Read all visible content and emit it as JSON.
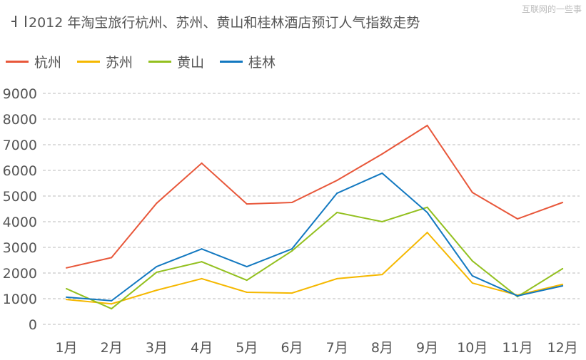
{
  "watermark": "互联网的一些事",
  "chart_data": {
    "type": "line",
    "title": "2012 年淘宝旅行杭州、苏州、黄山和桂林酒店预订人气指数走势",
    "categories": [
      "1月",
      "2月",
      "3月",
      "4月",
      "5月",
      "6月",
      "7月",
      "8月",
      "9月",
      "10月",
      "11月",
      "12月"
    ],
    "ylim": [
      0,
      9000
    ],
    "yticks": [
      "0",
      "1000",
      "2000",
      "3000",
      "4000",
      "5000",
      "6000",
      "7000",
      "8000",
      "9000"
    ],
    "grid": true,
    "legend_position": "top-left",
    "series": [
      {
        "name": "杭州",
        "color": "#e8573a",
        "values": [
          2200,
          2600,
          4720,
          6280,
          4690,
          4750,
          5610,
          6640,
          7750,
          5140,
          4110,
          4750
        ]
      },
      {
        "name": "苏州",
        "color": "#f5b800",
        "values": [
          970,
          800,
          1330,
          1780,
          1250,
          1220,
          1780,
          1940,
          3580,
          1610,
          1140,
          1560
        ]
      },
      {
        "name": "黄山",
        "color": "#93c01f",
        "values": [
          1390,
          610,
          2030,
          2440,
          1720,
          2860,
          4360,
          4000,
          4560,
          2470,
          1080,
          2170
        ]
      },
      {
        "name": "桂林",
        "color": "#1278c0",
        "values": [
          1060,
          920,
          2250,
          2940,
          2250,
          2940,
          5110,
          5890,
          4360,
          1890,
          1110,
          1500
        ]
      }
    ]
  }
}
